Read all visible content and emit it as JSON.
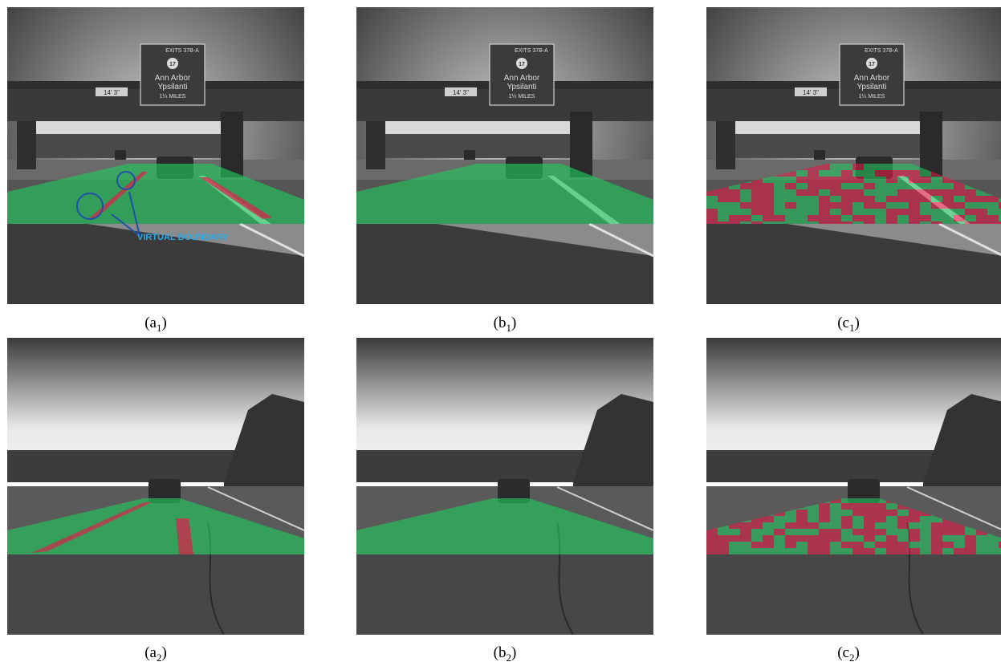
{
  "panels": [
    {
      "id": "a1",
      "letter": "a",
      "index": "1",
      "scene": "overpass",
      "overlay": "green-with-red-edges",
      "annotation": true
    },
    {
      "id": "b1",
      "letter": "b",
      "index": "1",
      "scene": "overpass",
      "overlay": "green",
      "annotation": false
    },
    {
      "id": "c1",
      "letter": "c",
      "index": "1",
      "scene": "overpass",
      "overlay": "checker",
      "annotation": false
    },
    {
      "id": "a2",
      "letter": "a",
      "index": "2",
      "scene": "open-road",
      "overlay": "green-with-red-edges",
      "annotation": false
    },
    {
      "id": "b2",
      "letter": "b",
      "index": "2",
      "scene": "open-road",
      "overlay": "green",
      "annotation": false
    },
    {
      "id": "c2",
      "letter": "c",
      "index": "2",
      "scene": "open-road",
      "overlay": "checker",
      "annotation": false
    }
  ],
  "annotation": {
    "text": "VIRTUAL BOUNDARY",
    "color": "#29a9e6"
  },
  "sign": {
    "exits": "EXITS 37B-A",
    "route": "17",
    "line1": "Ann Arbor",
    "line2": "Ypsilanti",
    "distance": "1¼ MILES"
  },
  "clearance": "14' 3\"",
  "colors": {
    "free_space": "#22c55e",
    "boundary": "#e11d48",
    "annotation_circle": "#1f4fa8"
  }
}
